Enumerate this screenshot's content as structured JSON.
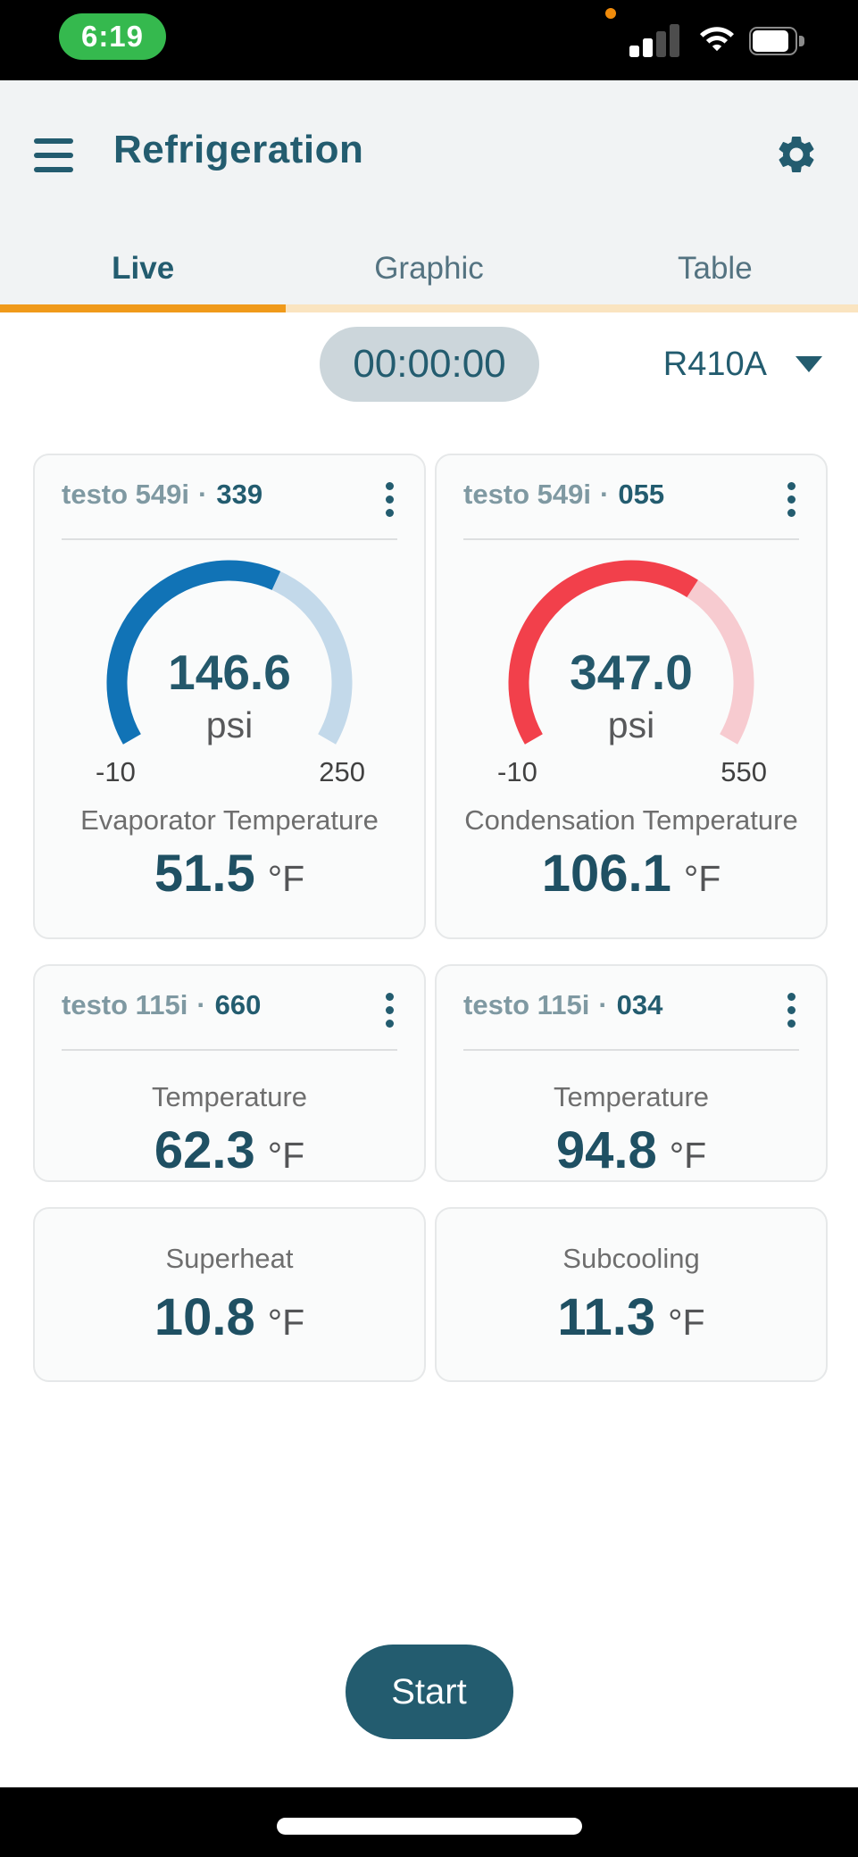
{
  "status_bar": {
    "time": "6:19"
  },
  "header": {
    "title": "Refrigeration"
  },
  "tabs": [
    {
      "label": "Live",
      "active": true
    },
    {
      "label": "Graphic",
      "active": false
    },
    {
      "label": "Table",
      "active": false
    }
  ],
  "controls": {
    "timer": "00:00:00",
    "refrigerant": "R410A"
  },
  "cards": [
    {
      "device": "testo 549i",
      "separator": "·",
      "serial": "339",
      "gauge": {
        "value": 146.6,
        "min": -10,
        "max": 250,
        "value_label": "146.6",
        "unit": "psi",
        "min_label": "-10",
        "max_label": "250",
        "fill_color": "#1173B6",
        "track_color": "#C3D9EA"
      },
      "measure": {
        "label": "Evaporator Temperature",
        "value": "51.5",
        "unit": "°F"
      }
    },
    {
      "device": "testo 549i",
      "separator": "·",
      "serial": "055",
      "gauge": {
        "value": 347.0,
        "min": -10,
        "max": 550,
        "value_label": "347.0",
        "unit": "psi",
        "min_label": "-10",
        "max_label": "550",
        "fill_color": "#F2404B",
        "track_color": "#F7CBD0"
      },
      "measure": {
        "label": "Condensation Temperature",
        "value": "106.1",
        "unit": "°F"
      }
    },
    {
      "device": "testo 115i",
      "separator": "·",
      "serial": "660",
      "measure": {
        "label": "Temperature",
        "value": "62.3",
        "unit": "°F"
      }
    },
    {
      "device": "testo 115i",
      "separator": "·",
      "serial": "034",
      "measure": {
        "label": "Temperature",
        "value": "94.8",
        "unit": "°F"
      }
    },
    {
      "measure": {
        "label": "Superheat",
        "value": "10.8",
        "unit": "°F"
      }
    },
    {
      "measure": {
        "label": "Subcooling",
        "value": "11.3",
        "unit": "°F"
      }
    }
  ],
  "footer": {
    "start": "Start"
  },
  "colors": {
    "teal": "#235C6F",
    "accent_orange": "#F09A1A",
    "accent_orange_pale": "#FAE4C0",
    "gauge_blue": "#1173B6",
    "gauge_blue_track": "#C3D9EA",
    "gauge_red": "#F2404B",
    "gauge_red_track": "#F7CBD0",
    "timer_pill_bg": "#CCD6DB",
    "status_green": "#35B94E",
    "mic_dot_orange": "#F08B0B"
  }
}
